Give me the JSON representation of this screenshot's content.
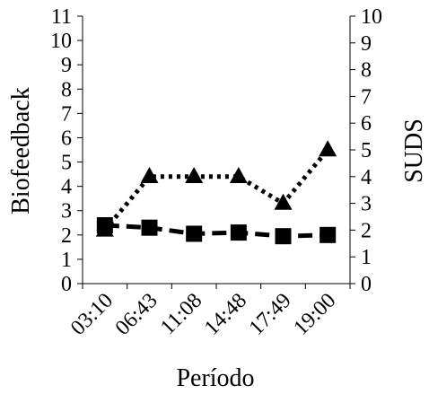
{
  "chart_data": {
    "type": "line",
    "title": "",
    "xlabel": "Período",
    "ylabel": "Biofeedback",
    "y2label": "SUDS",
    "categories": [
      "03:10",
      "06:43",
      "11:08",
      "14:48",
      "17:49",
      "19:00"
    ],
    "ylim": [
      0,
      11
    ],
    "y2lim": [
      0,
      10
    ],
    "yticks": [
      "0",
      "1",
      "2",
      "3",
      "4",
      "5",
      "6",
      "7",
      "8",
      "9",
      "10",
      "11"
    ],
    "y2ticks": [
      "0",
      "1",
      "2",
      "3",
      "4",
      "5",
      "6",
      "7",
      "8",
      "9",
      "10"
    ],
    "grid": false,
    "series": [
      {
        "axis": "left",
        "marker": "square",
        "line": "dashed",
        "color": "#000000",
        "values": [
          2.4,
          2.3,
          2.05,
          2.1,
          1.95,
          2.0
        ]
      },
      {
        "axis": "right",
        "marker": "triangle",
        "line": "dotted",
        "color": "#000000",
        "values": [
          2.0,
          4.0,
          4.0,
          4.0,
          3.0,
          5.0
        ]
      }
    ]
  }
}
